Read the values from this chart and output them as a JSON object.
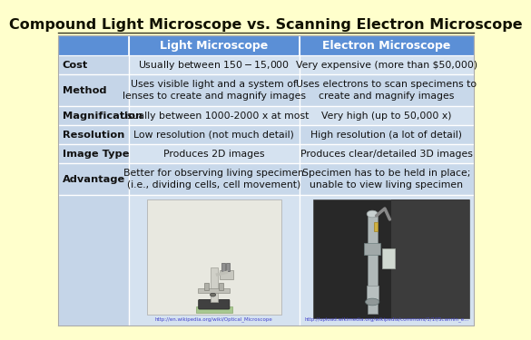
{
  "title": "Compound Light Microscope vs. Scanning Electron Microscope",
  "bg_color": "#FFFFCC",
  "header_bg": "#5B8FD6",
  "header_text_color": "#FFFFFF",
  "label_col_bg": "#C5D5E8",
  "cell_bg_light": "#D5E2F0",
  "cell_bg_dark": "#C8D8EA",
  "border_color": "#AABBCC",
  "headers": [
    "",
    "Light Microscope",
    "Electron Microscope"
  ],
  "rows": [
    [
      "Cost",
      "Usually between $150-$15,000",
      "Very expensive (more than $50,000)"
    ],
    [
      "Method",
      "Uses visible light and a system of\nlenses to create and magnify images",
      "Uses electrons to scan specimens to\ncreate and magnify images"
    ],
    [
      "Magnification",
      "Usually between 1000-2000 x at most",
      "Very high (up to 50,000 x)"
    ],
    [
      "Resolution",
      "Low resolution (not much detail)",
      "High resolution (a lot of detail)"
    ],
    [
      "Image Type",
      "Produces 2D images",
      "Produces clear/detailed 3D images"
    ],
    [
      "Advantage",
      "Better for observing living specimen\n(i.e., dividing cells, cell movement)",
      "Specimen has to be held in place;\nunable to view living specimen"
    ]
  ],
  "title_fontsize": 11.5,
  "header_fontsize": 9,
  "cell_fontsize": 7.8,
  "label_fontsize": 8.2,
  "caption_fontsize": 4.0,
  "caption_lm": "http://en.wikipedia.org/wiki/Optical_Microscope",
  "caption_em": "http://upload.wikimedia.org/wikipedia/commons/1/1f/Scannin_electron_microscope_2PIXm_TRS_Mgs_Ins_1.4.jpg"
}
